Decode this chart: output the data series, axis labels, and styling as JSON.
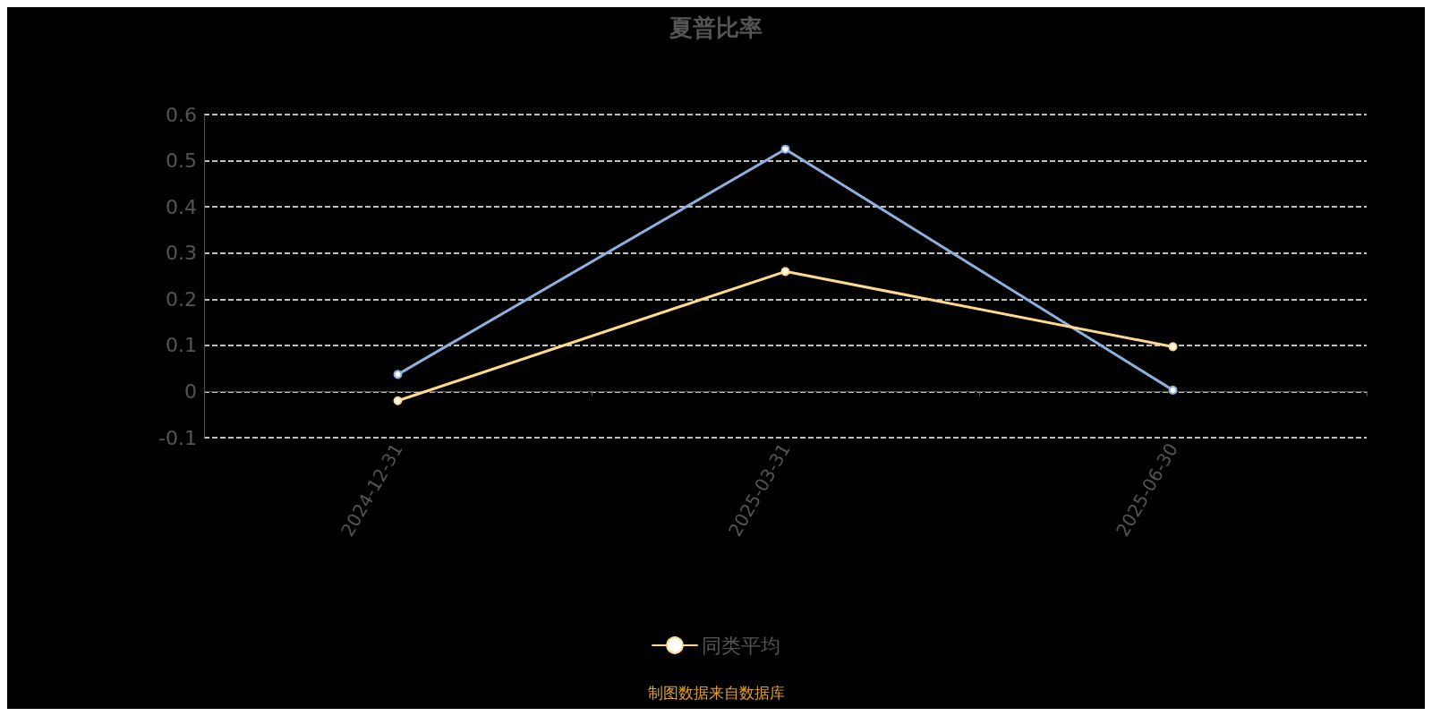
{
  "chart_data": {
    "type": "line",
    "title": "夏普比率",
    "categories": [
      "2024-12-31",
      "2025-03-31",
      "2025-06-30"
    ],
    "series": [
      {
        "color": "#8fb0dc",
        "values": [
          0.037,
          0.525,
          0.003
        ]
      },
      {
        "name": "同类平均",
        "color": "#ffd98f",
        "values": [
          -0.02,
          0.26,
          0.097
        ]
      }
    ],
    "ylim": [
      -0.1,
      0.6
    ],
    "yticks": [
      -0.1,
      0,
      0.1,
      0.2,
      0.3,
      0.4,
      0.5,
      0.6
    ],
    "grid": "y",
    "legend": "bottom",
    "marker": "circle",
    "line_style": "solid",
    "annotations": [
      "制图数据来自数据库"
    ]
  }
}
